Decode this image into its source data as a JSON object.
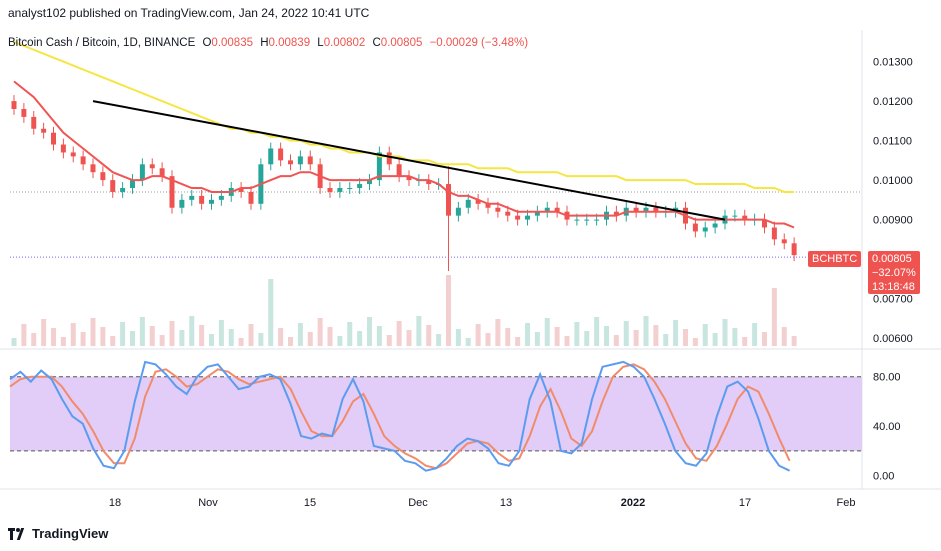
{
  "header": {
    "publisher": "analyst102 published on TradingView.com, Jan 24, 2022 10:41 UTC"
  },
  "legend": {
    "symbol": "Bitcoin Cash / Bitcoin, 1D, BINANCE",
    "open_label": "O",
    "open": "0.00835",
    "high_label": "H",
    "high": "0.00839",
    "low_label": "L",
    "low": "0.00802",
    "close_label": "C",
    "close": "0.00805",
    "change": "−0.00029 (−3.48%)"
  },
  "badges": {
    "ticker": "BCHBTC",
    "price": "0.00805",
    "pct": "−32.07%",
    "countdown": "13:18:48"
  },
  "footer": {
    "brand": "TradingView"
  },
  "colors": {
    "up": "#26a69a",
    "down": "#ef5350",
    "ma_fast": "#f05454",
    "ma_slow": "#f5e642",
    "trendline": "#000000",
    "stoch_k": "#5b9cf0",
    "stoch_d": "#f28b6b",
    "stoch_band": "#e1cdf7"
  },
  "chart_data": [
    {
      "type": "candlestick",
      "price_axis": {
        "ticks": [
          "0.01300",
          "0.01200",
          "0.01100",
          "0.01000",
          "0.00900",
          "0.00700",
          "0.00600"
        ],
        "range": [
          0.0058,
          0.0138
        ]
      },
      "x_axis": {
        "ticks": [
          "18",
          "Nov",
          "15",
          "Dec",
          "13",
          "2022",
          "17",
          "Feb"
        ]
      },
      "close_series": [
        0.0118,
        0.0116,
        0.0113,
        0.0112,
        0.0109,
        0.0107,
        0.0106,
        0.0104,
        0.0102,
        0.01,
        0.0097,
        0.0098,
        0.01,
        0.0104,
        0.0103,
        0.0101,
        0.0093,
        0.0095,
        0.0096,
        0.0094,
        0.0095,
        0.0096,
        0.0098,
        0.0097,
        0.0094,
        0.0104,
        0.0108,
        0.0105,
        0.0104,
        0.0106,
        0.0104,
        0.0098,
        0.0097,
        0.0098,
        0.0098,
        0.0099,
        0.01,
        0.0107,
        0.0104,
        0.0101,
        0.01,
        0.01,
        0.0099,
        0.0099,
        0.0091,
        0.0093,
        0.0095,
        0.0094,
        0.0093,
        0.0092,
        0.0091,
        0.009,
        0.0091,
        0.0092,
        0.0093,
        0.0092,
        0.009,
        0.009,
        0.009,
        0.009,
        0.0092,
        0.0091,
        0.0093,
        0.0092,
        0.0093,
        0.0092,
        0.0092,
        0.0093,
        0.0089,
        0.0087,
        0.0088,
        0.0089,
        0.0091,
        0.0091,
        0.009,
        0.009,
        0.0088,
        0.0085,
        0.0084,
        0.0081
      ],
      "last_price": 0.00805,
      "ma_fast": [
        0.0125,
        0.0123,
        0.0121,
        0.0118,
        0.0115,
        0.0112,
        0.011,
        0.0108,
        0.0106,
        0.0104,
        0.0102,
        0.0101,
        0.01,
        0.01,
        0.0101,
        0.0101,
        0.01,
        0.0099,
        0.0098,
        0.0098,
        0.0097,
        0.0097,
        0.0097,
        0.0098,
        0.0098,
        0.0099,
        0.01,
        0.0101,
        0.0101,
        0.0102,
        0.0102,
        0.0101,
        0.01,
        0.01,
        0.01,
        0.01,
        0.01,
        0.0101,
        0.0101,
        0.0101,
        0.0101,
        0.01,
        0.01,
        0.0099,
        0.0097,
        0.0096,
        0.0096,
        0.0095,
        0.0094,
        0.0094,
        0.0093,
        0.0092,
        0.0092,
        0.0092,
        0.0092,
        0.0092,
        0.0091,
        0.0091,
        0.0091,
        0.0091,
        0.0091,
        0.0091,
        0.0092,
        0.0092,
        0.0092,
        0.0092,
        0.0092,
        0.0092,
        0.0091,
        0.009,
        0.009,
        0.009,
        0.009,
        0.009,
        0.009,
        0.009,
        0.009,
        0.0089,
        0.0089,
        0.0088
      ],
      "ma_slow": [
        0.0135,
        0.0134,
        0.0133,
        0.0132,
        0.0131,
        0.013,
        0.0129,
        0.0128,
        0.0127,
        0.0126,
        0.0125,
        0.0124,
        0.0123,
        0.0122,
        0.0121,
        0.012,
        0.0119,
        0.0118,
        0.0117,
        0.0116,
        0.0115,
        0.0114,
        0.0113,
        0.0113,
        0.0112,
        0.0112,
        0.0111,
        0.0111,
        0.011,
        0.011,
        0.0109,
        0.0109,
        0.0108,
        0.0108,
        0.0107,
        0.0107,
        0.0107,
        0.0106,
        0.0106,
        0.0106,
        0.0105,
        0.0105,
        0.0105,
        0.0104,
        0.0104,
        0.0104,
        0.0104,
        0.0103,
        0.0103,
        0.0103,
        0.0103,
        0.0102,
        0.0102,
        0.0102,
        0.0102,
        0.0102,
        0.0101,
        0.0101,
        0.0101,
        0.0101,
        0.0101,
        0.0101,
        0.01,
        0.01,
        0.01,
        0.01,
        0.01,
        0.01,
        0.01,
        0.0099,
        0.0099,
        0.0099,
        0.0099,
        0.0099,
        0.0099,
        0.0098,
        0.0098,
        0.0098,
        0.0097,
        0.0097
      ],
      "trendline": [
        [
          0.012,
          8
        ],
        [
          0.009,
          72
        ]
      ]
    },
    {
      "type": "line",
      "name": "stochastic",
      "y_axis": {
        "ticks": [
          "80.00",
          "40.00",
          "0.00"
        ],
        "range": [
          -10,
          100
        ],
        "band": [
          20,
          80
        ]
      },
      "k": [
        78,
        84,
        76,
        85,
        78,
        62,
        48,
        42,
        22,
        8,
        6,
        20,
        60,
        92,
        90,
        82,
        72,
        66,
        80,
        88,
        90,
        80,
        70,
        72,
        80,
        82,
        78,
        58,
        32,
        30,
        34,
        32,
        62,
        78,
        60,
        24,
        22,
        20,
        12,
        10,
        4,
        6,
        14,
        24,
        30,
        28,
        22,
        10,
        8,
        20,
        62,
        82,
        60,
        20,
        18,
        26,
        62,
        88,
        90,
        92,
        88,
        80,
        62,
        42,
        20,
        10,
        8,
        18,
        48,
        72,
        76,
        68,
        46,
        20,
        8,
        4
      ],
      "d": [
        72,
        78,
        80,
        80,
        80,
        72,
        60,
        50,
        36,
        20,
        10,
        10,
        30,
        64,
        84,
        86,
        80,
        72,
        74,
        80,
        86,
        84,
        78,
        74,
        76,
        78,
        80,
        70,
        52,
        36,
        32,
        32,
        44,
        60,
        66,
        50,
        32,
        24,
        18,
        14,
        8,
        6,
        10,
        18,
        26,
        28,
        26,
        18,
        12,
        14,
        32,
        56,
        70,
        52,
        30,
        24,
        36,
        60,
        80,
        88,
        90,
        86,
        76,
        62,
        44,
        26,
        14,
        12,
        24,
        42,
        62,
        72,
        68,
        50,
        30,
        12
      ]
    }
  ]
}
